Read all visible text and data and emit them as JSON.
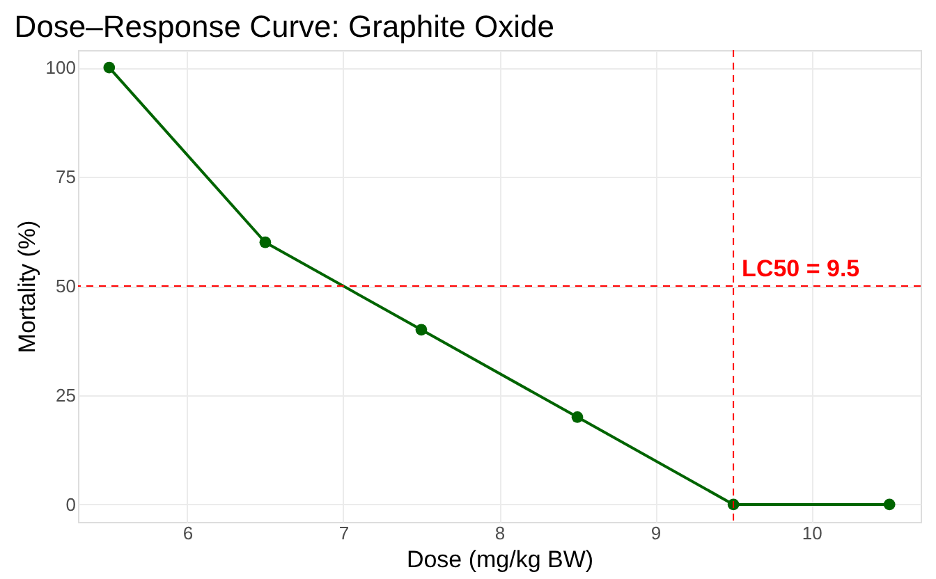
{
  "chart_data": {
    "type": "line",
    "title": "Dose–Response Curve: Graphite Oxide",
    "xlabel": "Dose (mg/kg BW)",
    "ylabel": "Mortality (%)",
    "x": [
      5.5,
      6.5,
      7.5,
      8.5,
      9.5,
      10.5
    ],
    "series": [
      {
        "color": "#006400",
        "values": [
          100,
          60,
          40,
          20,
          0,
          0
        ]
      }
    ],
    "xlim": [
      5.3,
      10.7
    ],
    "xticks": [
      6,
      7,
      8,
      9,
      10
    ],
    "ylim": [
      -4,
      104
    ],
    "yticks": [
      0,
      25,
      50,
      75,
      100
    ],
    "grid": true,
    "marker": "circle",
    "line_style": "solid",
    "ref_lines": [
      {
        "axis": "y",
        "value": 50,
        "color": "#ff0000",
        "line_style": "dashed"
      },
      {
        "axis": "x",
        "value": 9.5,
        "label": "LC50 = 9.5",
        "color": "#ff0000",
        "line_style": "dashed"
      }
    ]
  }
}
